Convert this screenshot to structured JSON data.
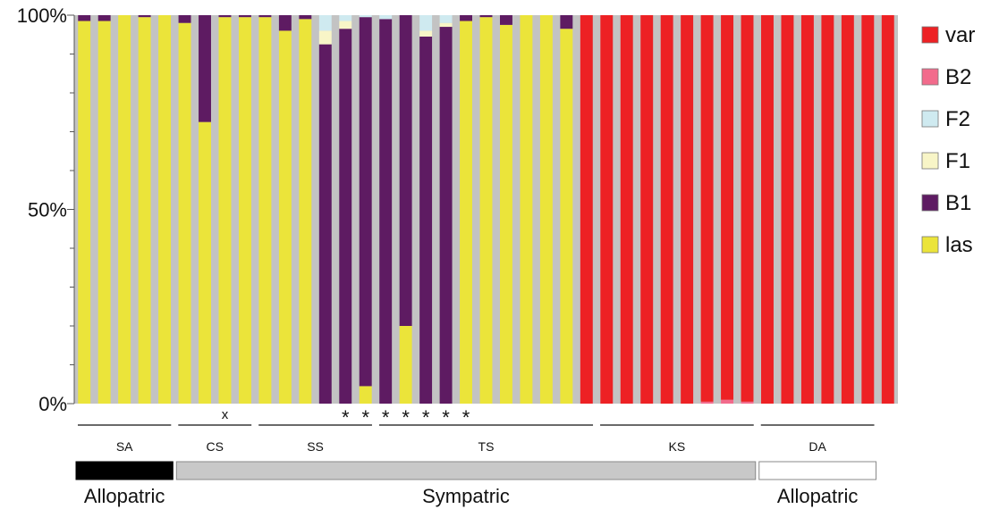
{
  "chart_data": {
    "type": "bar",
    "stacked": true,
    "ylim": [
      0,
      100
    ],
    "yticks": [
      "0%",
      "50%",
      "100%"
    ],
    "series": [
      {
        "name": "las",
        "color": "#ebe43a"
      },
      {
        "name": "B1",
        "color": "#5e1b62"
      },
      {
        "name": "F1",
        "color": "#f8f5c7"
      },
      {
        "name": "F2",
        "color": "#cfeaf0"
      },
      {
        "name": "B2",
        "color": "#f26b8c"
      },
      {
        "name": "var",
        "color": "#ed2124"
      }
    ],
    "legend_order": [
      "var",
      "B2",
      "F2",
      "F1",
      "B1",
      "las"
    ],
    "legend_position": "right",
    "bars": [
      {
        "las": 98.5,
        "B1": 1.5
      },
      {
        "las": 98.5,
        "B1": 1.5
      },
      {
        "las": 100
      },
      {
        "las": 99.5,
        "B1": 0.5
      },
      {
        "las": 100
      },
      {
        "las": 98,
        "B1": 2
      },
      {
        "las": 72.5,
        "B1": 27.5
      },
      {
        "las": 99.5,
        "B1": 0.5
      },
      {
        "las": 99.5,
        "B1": 0.5
      },
      {
        "las": 99.5,
        "B1": 0.5
      },
      {
        "las": 96,
        "B1": 4
      },
      {
        "las": 99,
        "B1": 1
      },
      {
        "las": 0,
        "F1": 3.5,
        "F2": 4,
        "B1": 92.5
      },
      {
        "las": 0,
        "F1": 2,
        "F2": 1.5,
        "B1": 96.5
      },
      {
        "las": 4.5,
        "F2": 0.5,
        "B1": 95
      },
      {
        "las": 0,
        "F2": 1,
        "B1": 99
      },
      {
        "las": 20,
        "B1": 80
      },
      {
        "las": 0,
        "F1": 1.5,
        "F2": 4,
        "B1": 94.5
      },
      {
        "las": 0,
        "F1": 1,
        "F2": 2,
        "B1": 97
      },
      {
        "las": 98.5,
        "B1": 1.5
      },
      {
        "las": 99.5,
        "B1": 0.5
      },
      {
        "las": 97.5,
        "B1": 2.5
      },
      {
        "las": 100
      },
      {
        "las": 100
      },
      {
        "las": 96.5,
        "B1": 3.5
      },
      {
        "var": 100
      },
      {
        "var": 100
      },
      {
        "var": 100
      },
      {
        "var": 100
      },
      {
        "var": 100
      },
      {
        "var": 100
      },
      {
        "var": 99.5,
        "B2": 0.5
      },
      {
        "var": 99,
        "B2": 1
      },
      {
        "var": 99.5,
        "B2": 0.5
      },
      {
        "var": 100
      },
      {
        "var": 100
      },
      {
        "var": 100
      },
      {
        "var": 100
      },
      {
        "var": 100
      },
      {
        "var": 100
      },
      {
        "var": 100
      }
    ],
    "bar_markers": [
      {
        "bar": 7,
        "text": "x"
      },
      {
        "bar": 13,
        "text": "*"
      },
      {
        "bar": 14,
        "text": "*"
      },
      {
        "bar": 15,
        "text": "*"
      },
      {
        "bar": 16,
        "text": "*"
      },
      {
        "bar": 17,
        "text": "*"
      },
      {
        "bar": 18,
        "text": "*"
      },
      {
        "bar": 19,
        "text": "*"
      }
    ],
    "groups": [
      {
        "label": "SA",
        "start": 0,
        "end": 4
      },
      {
        "label": "CS",
        "start": 5,
        "end": 8
      },
      {
        "label": "SS",
        "start": 9,
        "end": 14
      },
      {
        "label": "TS",
        "start": 15,
        "end": 25
      },
      {
        "label": "KS",
        "start": 26,
        "end": 33
      },
      {
        "label": "DA",
        "start": 34,
        "end": 39
      }
    ],
    "regions": [
      {
        "label": "Allopatric",
        "start": 0,
        "end": 4,
        "fill": "#000000"
      },
      {
        "label": "Sympatric",
        "start": 5,
        "end": 33,
        "fill": "#c8c8c8"
      },
      {
        "label": "Allopatric",
        "start": 34,
        "end": 39,
        "fill": "#ffffff"
      }
    ]
  }
}
